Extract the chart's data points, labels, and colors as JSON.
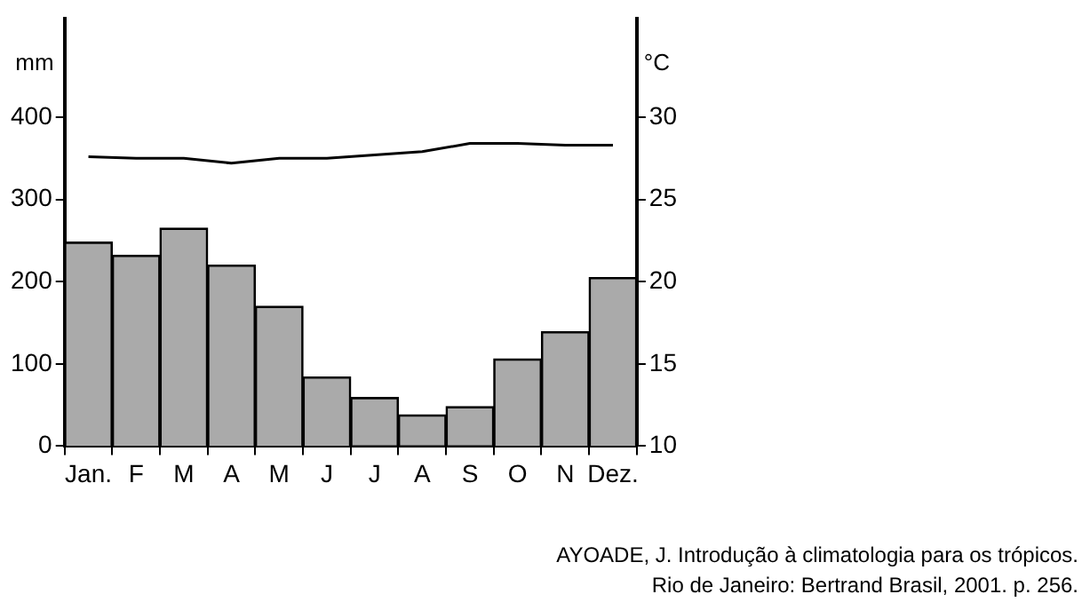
{
  "chart_data": {
    "type": "bar",
    "categories": [
      "Jan.",
      "F",
      "M",
      "A",
      "M",
      "J",
      "J",
      "A",
      "S",
      "O",
      "N",
      "Dez."
    ],
    "series": [
      {
        "color": "#aaaaaa",
        "values": [
          248,
          232,
          265,
          220,
          170,
          84,
          59,
          38,
          48,
          106,
          139,
          205
        ]
      },
      {
        "type": "line",
        "axis": "y2",
        "color": "#000000",
        "values": [
          27.6,
          27.5,
          27.5,
          27.2,
          27.5,
          27.5,
          27.7,
          27.9,
          28.4,
          28.4,
          28.3,
          28.3
        ]
      }
    ],
    "ylabel": "mm",
    "y2label": "°C",
    "ylim": [
      0,
      520
    ],
    "yticks": [
      0,
      100,
      200,
      300,
      400
    ],
    "y2lim": [
      10,
      36
    ],
    "y2ticks": [
      10,
      15,
      20,
      25,
      30
    ],
    "grid": false,
    "legend": false,
    "marker": "none",
    "line_style": "solid",
    "annotations": [
      "AYOADE, J. Introdução à climatologia para os trópicos.",
      "Rio de Janeiro: Bertrand Brasil, 2001. p. 256."
    ]
  }
}
